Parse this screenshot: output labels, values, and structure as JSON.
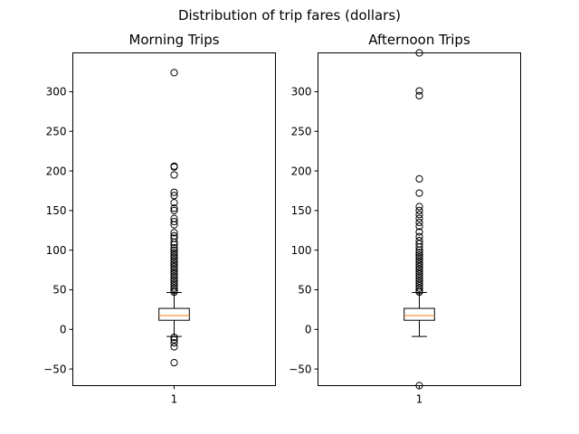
{
  "chart_data": {
    "title": "Distribution of trip fares (dollars)",
    "panels": [
      {
        "type": "box",
        "title": "Morning Trips",
        "xticks": [
          "1"
        ],
        "yticks": [
          -50,
          0,
          50,
          100,
          150,
          200,
          250,
          300
        ],
        "ylim": [
          -71,
          349
        ],
        "series": [
          {
            "q1": 11.5,
            "median": 17.5,
            "q3": 26.5,
            "whisker_low": -9,
            "whisker_high": 46.5,
            "fliers": [
              324,
              206,
              205,
              195,
              173,
              169,
              160,
              153,
              150,
              140,
              136,
              132,
              122,
              118,
              115,
              110,
              107,
              103,
              100,
              97,
              94,
              91,
              88,
              85,
              82,
              79,
              76,
              73,
              70,
              67,
              64,
              61,
              58,
              55,
              52,
              49,
              47,
              -10,
              -13,
              -17,
              -22,
              -42
            ]
          }
        ]
      },
      {
        "type": "box",
        "title": "Afternoon Trips",
        "xticks": [
          "1"
        ],
        "yticks": [
          -50,
          0,
          50,
          100,
          150,
          200,
          250,
          300
        ],
        "ylim": [
          -71,
          349
        ],
        "series": [
          {
            "q1": 11.5,
            "median": 17.5,
            "q3": 26.5,
            "whisker_low": -9,
            "whisker_high": 46.5,
            "fliers": [
              349,
              301,
              295,
              190,
              172,
              155,
              150,
              145,
              140,
              135,
              130,
              123,
              117,
              112,
              108,
              104,
              100,
              97,
              94,
              91,
              88,
              85,
              82,
              79,
              76,
              73,
              70,
              67,
              64,
              61,
              58,
              55,
              52,
              49,
              47,
              -71
            ]
          }
        ]
      }
    ],
    "grid": false
  }
}
